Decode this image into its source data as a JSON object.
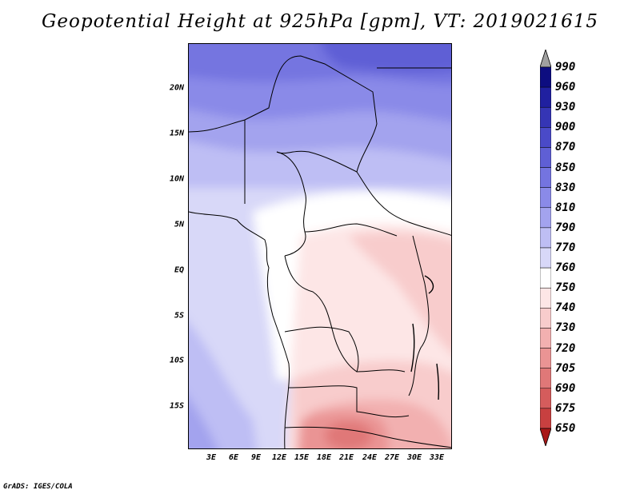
{
  "title": "Geopotential Height at 925hPa [gpm], VT: 2019021615",
  "credit": "GrADS: IGES/COLA",
  "map": {
    "lat_labels": [
      "20N",
      "15N",
      "10N",
      "5N",
      "EQ",
      "5S",
      "10S",
      "15S"
    ],
    "lon_labels": [
      "3E",
      "6E",
      "9E",
      "12E",
      "15E",
      "18E",
      "21E",
      "24E",
      "27E",
      "30E",
      "33E"
    ]
  },
  "legend": {
    "levels": [
      "990",
      "960",
      "930",
      "900",
      "870",
      "850",
      "830",
      "810",
      "790",
      "770",
      "760",
      "750",
      "740",
      "730",
      "720",
      "705",
      "690",
      "675",
      "650"
    ],
    "colors": [
      "#0d0d80",
      "#2020a0",
      "#3535b5",
      "#4a4ac8",
      "#5f5fd5",
      "#7474e0",
      "#8a8ae8",
      "#a3a3ee",
      "#bebef4",
      "#d8d8f8",
      "#ffffff",
      "#fde6e6",
      "#f8cccc",
      "#f2b0b0",
      "#ea9494",
      "#e07878",
      "#d55c5c",
      "#c84040",
      "#b82828",
      "#a81818"
    ]
  }
}
